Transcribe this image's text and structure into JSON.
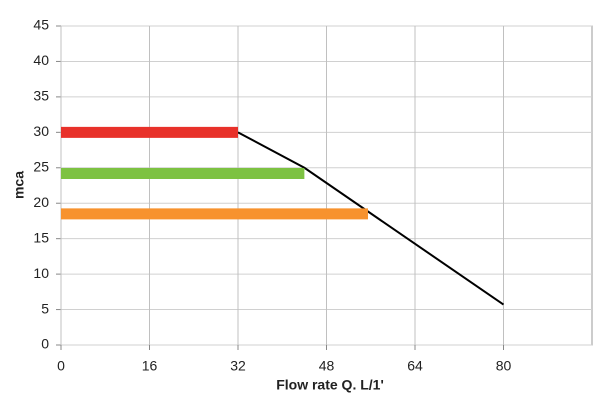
{
  "chart_data": {
    "type": "line",
    "x_label": "Flow rate Q. L/1'",
    "y_label": "mca",
    "xlim": [
      0,
      96
    ],
    "xticks": [
      0,
      16,
      32,
      48,
      64,
      80
    ],
    "ylim": [
      0,
      45
    ],
    "yticks": [
      0,
      5,
      10,
      15,
      20,
      25,
      30,
      35,
      40,
      45
    ],
    "grid": true,
    "series": [
      {
        "color": "#000000",
        "width": 2,
        "x": [
          32,
          44,
          80
        ],
        "values": [
          30,
          25,
          5.7
        ]
      },
      {
        "color": "#e8312a",
        "width": 11,
        "x": [
          0,
          32
        ],
        "values": [
          30,
          30
        ]
      },
      {
        "color": "#7dc242",
        "width": 11,
        "x": [
          0,
          44
        ],
        "values": [
          24.2,
          24.2
        ]
      },
      {
        "color": "#f7922e",
        "width": 11,
        "x": [
          0,
          55.5
        ],
        "values": [
          18.5,
          18.5
        ]
      }
    ]
  }
}
